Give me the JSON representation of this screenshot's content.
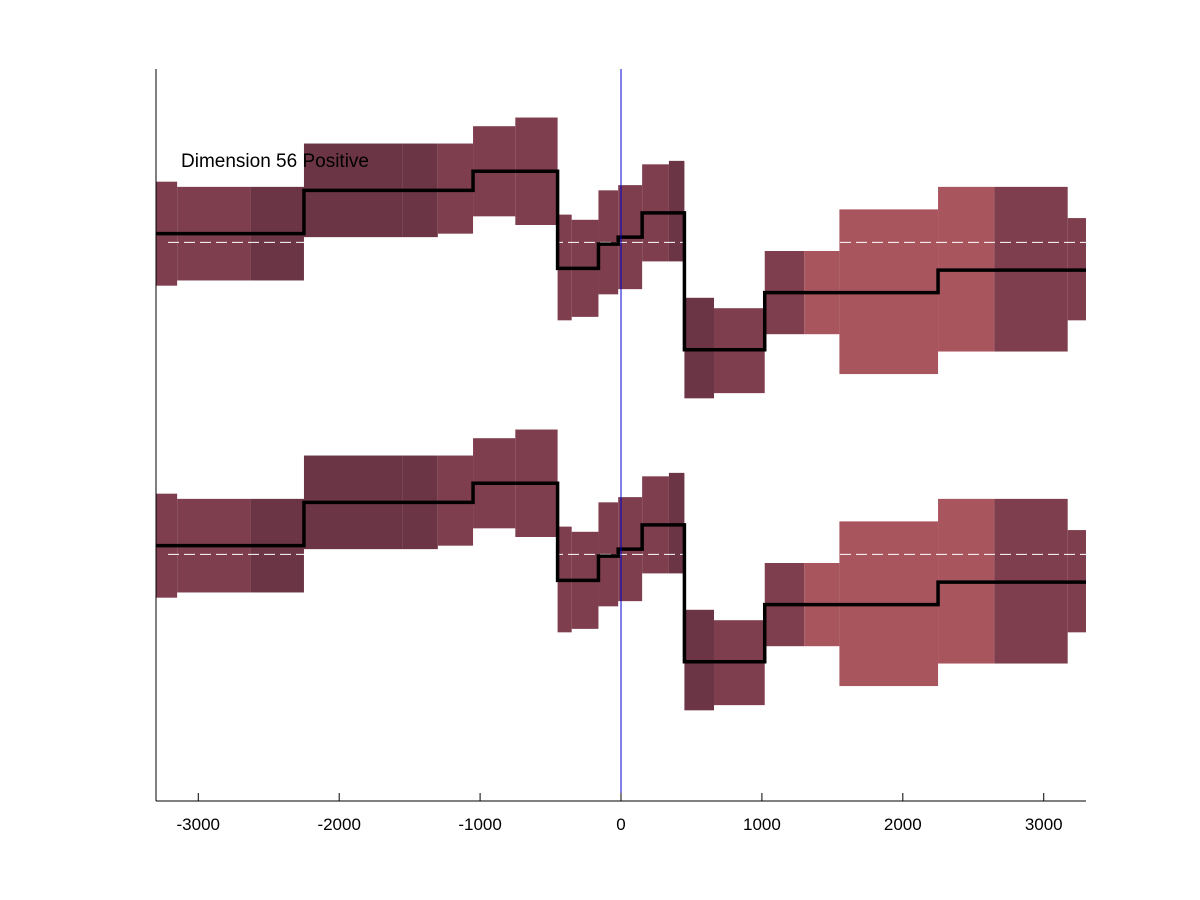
{
  "chart_data": {
    "type": "area",
    "title": "",
    "xlabel": "",
    "ylabel": "",
    "annotation": "Dimension 56 Positive",
    "xlim": [
      -3300,
      3300
    ],
    "xticks": [
      -3000,
      -2000,
      -1000,
      0,
      1000,
      2000,
      3000
    ],
    "xtick_labels": [
      "-3000",
      "-2000",
      "-1000",
      "0",
      "1000",
      "2000",
      "3000"
    ],
    "vline_x": 0,
    "grid": false,
    "colors": {
      "dark": "#6b3545",
      "medium": "#7e3e4e",
      "light": "#a8555e",
      "line": "#000000",
      "vline": "#0000cc",
      "zero": "#ffffff"
    },
    "panels": [
      {
        "baseline": 0.0,
        "ylim": [
          -0.8,
          1.0
        ]
      },
      {
        "baseline": 0.0,
        "ylim": [
          -0.8,
          1.0
        ]
      }
    ],
    "segments": [
      {
        "x0": -3300,
        "x1": -3150,
        "value": 0.05,
        "low": -0.25,
        "high": 0.35,
        "shade": "medium"
      },
      {
        "x0": -3150,
        "x1": -2630,
        "value": 0.05,
        "low": -0.22,
        "high": 0.32,
        "shade": "medium"
      },
      {
        "x0": -2630,
        "x1": -2250,
        "value": 0.05,
        "low": -0.22,
        "high": 0.32,
        "shade": "dark"
      },
      {
        "x0": -2250,
        "x1": -1550,
        "value": 0.3,
        "low": 0.03,
        "high": 0.57,
        "shade": "dark"
      },
      {
        "x0": -1550,
        "x1": -1300,
        "value": 0.3,
        "low": 0.03,
        "high": 0.57,
        "shade": "dark"
      },
      {
        "x0": -1300,
        "x1": -1050,
        "value": 0.3,
        "low": 0.05,
        "high": 0.57,
        "shade": "medium"
      },
      {
        "x0": -1050,
        "x1": -750,
        "value": 0.41,
        "low": 0.15,
        "high": 0.67,
        "shade": "medium"
      },
      {
        "x0": -750,
        "x1": -450,
        "value": 0.41,
        "low": 0.1,
        "high": 0.72,
        "shade": "medium"
      },
      {
        "x0": -450,
        "x1": -350,
        "value": -0.15,
        "low": -0.45,
        "high": 0.16,
        "shade": "medium"
      },
      {
        "x0": -350,
        "x1": -160,
        "value": -0.15,
        "low": -0.43,
        "high": 0.13,
        "shade": "medium"
      },
      {
        "x0": -160,
        "x1": -20,
        "value": -0.01,
        "low": -0.3,
        "high": 0.3,
        "shade": "medium"
      },
      {
        "x0": -20,
        "x1": 150,
        "value": 0.03,
        "low": -0.27,
        "high": 0.33,
        "shade": "medium"
      },
      {
        "x0": 150,
        "x1": 340,
        "value": 0.17,
        "low": -0.11,
        "high": 0.45,
        "shade": "medium"
      },
      {
        "x0": 340,
        "x1": 450,
        "value": 0.17,
        "low": -0.11,
        "high": 0.47,
        "shade": "dark"
      },
      {
        "x0": 450,
        "x1": 660,
        "value": -0.62,
        "low": -0.9,
        "high": -0.32,
        "shade": "dark"
      },
      {
        "x0": 660,
        "x1": 1020,
        "value": -0.62,
        "low": -0.87,
        "high": -0.38,
        "shade": "medium"
      },
      {
        "x0": 1020,
        "x1": 1300,
        "value": -0.29,
        "low": -0.53,
        "high": -0.05,
        "shade": "medium"
      },
      {
        "x0": 1300,
        "x1": 1550,
        "value": -0.29,
        "low": -0.53,
        "high": -0.05,
        "shade": "light"
      },
      {
        "x0": 1550,
        "x1": 2250,
        "value": -0.29,
        "low": -0.76,
        "high": 0.19,
        "shade": "light"
      },
      {
        "x0": 2250,
        "x1": 2650,
        "value": -0.16,
        "low": -0.63,
        "high": 0.32,
        "shade": "light"
      },
      {
        "x0": 2650,
        "x1": 3170,
        "value": -0.16,
        "low": -0.63,
        "high": 0.32,
        "shade": "medium"
      },
      {
        "x0": 3170,
        "x1": 3300,
        "value": -0.16,
        "low": -0.45,
        "high": 0.14,
        "shade": "medium"
      }
    ]
  }
}
